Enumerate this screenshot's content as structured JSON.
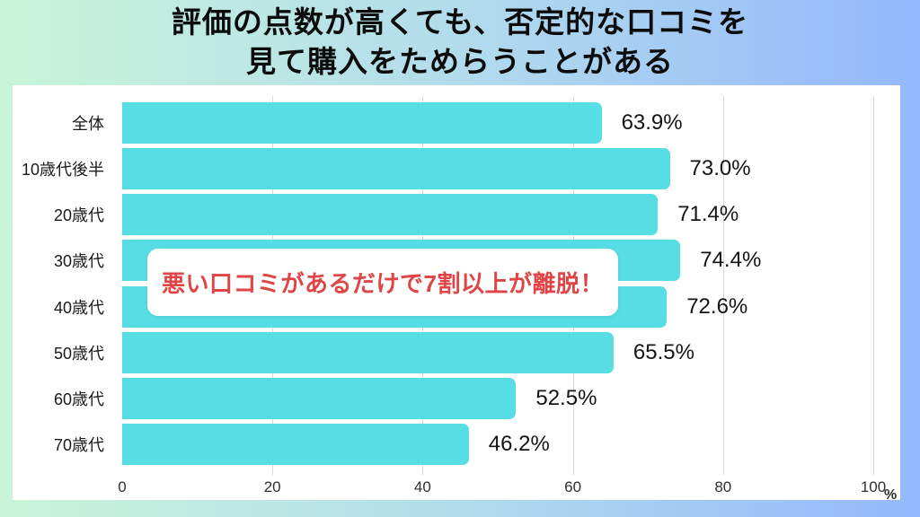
{
  "title": {
    "line1": "評価の点数が高くても、否定的な口コミを",
    "line2": "見て購入をためらうことがある"
  },
  "annotation": {
    "text": "悪い口コミがあるだけで7割以上が離脱！"
  },
  "chart_data": {
    "type": "bar",
    "orientation": "horizontal",
    "title": "評価の点数が高くても、否定的な口コミを見て購入をためらうことがある",
    "categories": [
      "全体",
      "10歳代後半",
      "20歳代",
      "30歳代",
      "40歳代",
      "50歳代",
      "60歳代",
      "70歳代"
    ],
    "values": [
      63.9,
      73.0,
      71.4,
      74.4,
      72.6,
      65.5,
      52.5,
      46.2
    ],
    "value_labels": [
      "63.9%",
      "73.0%",
      "71.4%",
      "74.4%",
      "72.6%",
      "65.5%",
      "52.5%",
      "46.2%"
    ],
    "xlim": [
      0,
      100
    ],
    "x_ticks": [
      0,
      20,
      40,
      60,
      80,
      100
    ],
    "x_unit": "%",
    "grid": true,
    "legend_position": "none",
    "annotation": "悪い口コミがあるだけで7割以上が離脱！",
    "colors": {
      "bar": "#57dde4",
      "gridline": "#d9d9d9",
      "annotation_text": "#e04545",
      "value_label": "#141414",
      "title_text": "#0c0c0c",
      "panel_background": "#ffffff",
      "background_gradient_left": "#c9f5d9",
      "background_gradient_right": "#94b8fc"
    }
  }
}
